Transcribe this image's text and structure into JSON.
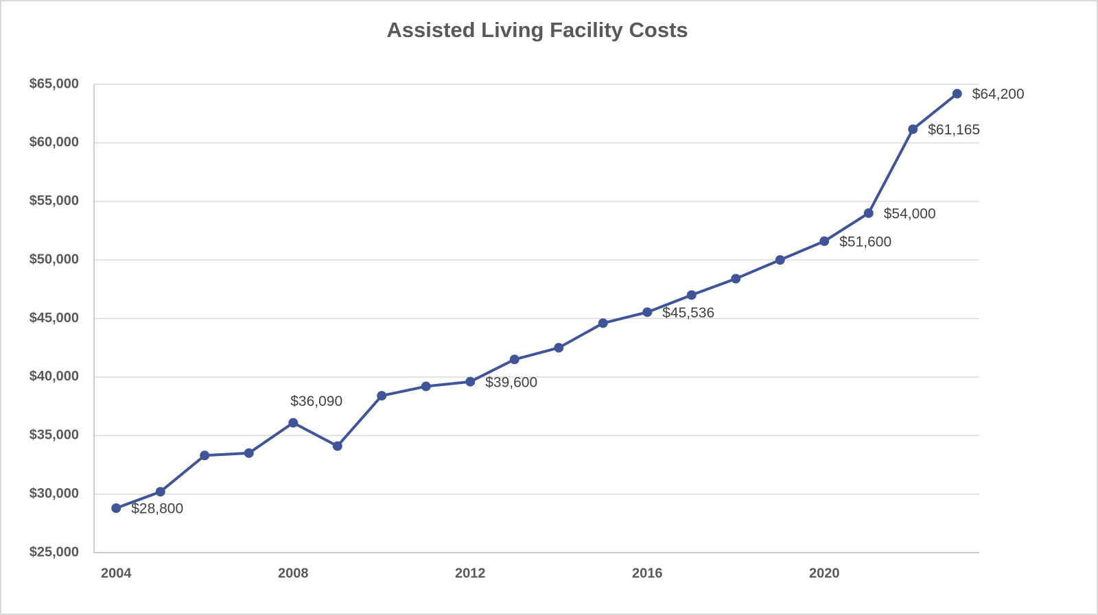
{
  "chart_data": {
    "type": "line",
    "title": "Assisted Living Facility Costs",
    "x": [
      2004,
      2005,
      2006,
      2007,
      2008,
      2009,
      2010,
      2011,
      2012,
      2013,
      2014,
      2015,
      2016,
      2017,
      2018,
      2019,
      2020,
      2021,
      2022,
      2023
    ],
    "series": [
      {
        "color": "#3f5597",
        "values": [
          28800,
          30200,
          33300,
          33500,
          36090,
          34100,
          38400,
          39200,
          39600,
          41500,
          42500,
          44600,
          45536,
          47000,
          48400,
          50000,
          51600,
          54000,
          61165,
          64200
        ],
        "value_labels": [
          "$28,800",
          null,
          null,
          null,
          "$36,090",
          null,
          null,
          null,
          "$39,600",
          null,
          null,
          null,
          "$45,536",
          null,
          null,
          null,
          "$51,600",
          "$54,000",
          "$61,165",
          "$64,200"
        ]
      }
    ],
    "xlim": [
      2003.5,
      2023.5
    ],
    "xticks": [
      2004,
      2008,
      2012,
      2016,
      2020
    ],
    "ylim": [
      25000,
      65000
    ],
    "yticks": [
      {
        "value": 25000,
        "label": "$25,000"
      },
      {
        "value": 30000,
        "label": "$30,000"
      },
      {
        "value": 35000,
        "label": "$35,000"
      },
      {
        "value": 40000,
        "label": "$40,000"
      },
      {
        "value": 45000,
        "label": "$45,000"
      },
      {
        "value": 50000,
        "label": "$50,000"
      },
      {
        "value": 55000,
        "label": "$55,000"
      },
      {
        "value": 60000,
        "label": "$60,000"
      },
      {
        "value": 65000,
        "label": "$65,000"
      }
    ],
    "grid": true
  }
}
